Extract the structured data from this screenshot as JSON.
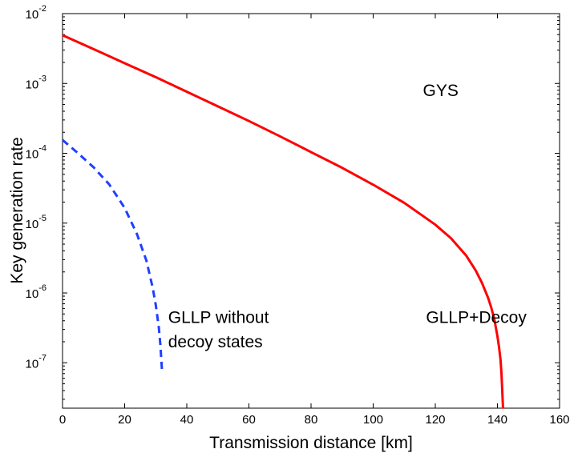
{
  "chart_data": {
    "type": "line",
    "title": "",
    "xlabel": "Transmission distance [km]",
    "ylabel": "Key generation rate",
    "xlim": [
      0,
      160
    ],
    "ylim_log10": [
      -7.65,
      -2
    ],
    "yscale": "log",
    "grid": false,
    "x_ticks": [
      0,
      20,
      40,
      60,
      80,
      100,
      120,
      140,
      160
    ],
    "x_tick_labels": [
      "0",
      "20",
      "40",
      "60",
      "80",
      "100",
      "120",
      "140",
      "160"
    ],
    "y_ticks_log10": [
      -7,
      -6,
      -5,
      -4,
      -3,
      -2
    ],
    "y_tick_labels": [
      {
        "base": "10",
        "exp": "-7"
      },
      {
        "base": "10",
        "exp": "-6"
      },
      {
        "base": "10",
        "exp": "-5"
      },
      {
        "base": "10",
        "exp": "-4"
      },
      {
        "base": "10",
        "exp": "-3"
      },
      {
        "base": "10",
        "exp": "-2"
      }
    ],
    "series": [
      {
        "name": "GLLP+Decoy",
        "color": "#ff0000",
        "style": "solid",
        "x": [
          0,
          10,
          20,
          30,
          40,
          50,
          60,
          70,
          80,
          90,
          100,
          110,
          120,
          125,
          130,
          133,
          135,
          137,
          138,
          139,
          140,
          140.5,
          141,
          141.3,
          141.5,
          141.7,
          141.8
        ],
        "y": [
          0.0049,
          0.0031,
          0.00195,
          0.00123,
          0.00076,
          0.00047,
          0.00029,
          0.000175,
          0.000104,
          6.2e-05,
          3.55e-05,
          1.95e-05,
          9.5e-06,
          6.1e-06,
          3.4e-06,
          2.1e-06,
          1.4e-06,
          8.5e-07,
          6.2e-07,
          4.2e-07,
          2.4e-07,
          1.7e-07,
          1.1e-07,
          7e-08,
          4.5e-08,
          2.8e-08,
          2.2e-08
        ]
      },
      {
        "name": "GLLP without decoy states",
        "color": "#1f3fff",
        "style": "dashed",
        "x": [
          0,
          5,
          10,
          15,
          20,
          24,
          27,
          29,
          30,
          31,
          31.5,
          32
        ],
        "y": [
          0.000155,
          0.0001,
          6.3e-05,
          3.6e-05,
          1.65e-05,
          6.9e-06,
          2.9e-06,
          1.2e-06,
          6.8e-07,
          3.2e-07,
          1.8e-07,
          8e-08
        ]
      }
    ],
    "annotations": [
      {
        "text": "GYS",
        "x": 116,
        "y_log10": -3.1
      },
      {
        "text": "GLLP+Decoy",
        "x": 117,
        "y_log10": -6.35
      },
      {
        "text": "GLLP without",
        "x": 34,
        "y_log10": -6.35
      },
      {
        "text": "decoy states",
        "x": 34,
        "y_log10": -6.7
      }
    ]
  }
}
